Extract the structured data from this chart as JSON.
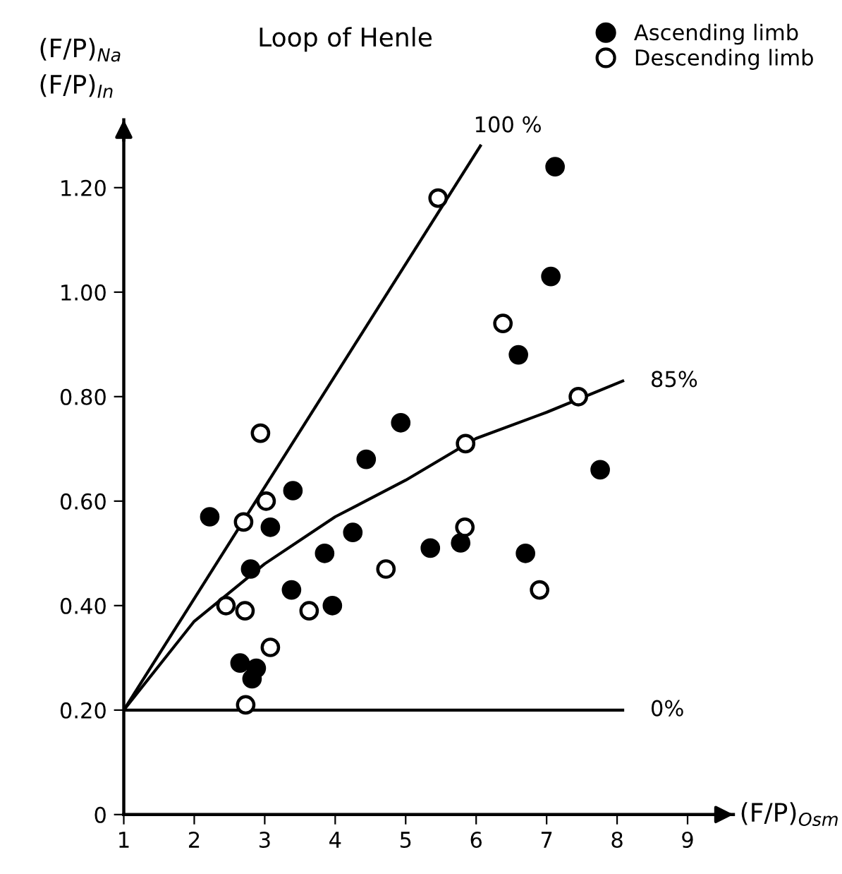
{
  "chart_data": {
    "type": "scatter",
    "title": "Loop of Henle",
    "xlabel": "(F/P)$_{Osm}$",
    "ylabel": "(F/P)$_{Na}$\n(F/P)$_{In}$",
    "xlim": [
      1,
      9.65
    ],
    "xticks": [
      1,
      2,
      3,
      4,
      5,
      6,
      7,
      8,
      9
    ],
    "ylim": [
      0,
      1.33
    ],
    "yticks": [
      0,
      {
        "value": 0.2,
        "label": "0.20"
      },
      {
        "value": 0.4,
        "label": "0.40"
      },
      {
        "value": 0.6,
        "label": "0.60"
      },
      {
        "value": 0.8,
        "label": "0.80"
      },
      {
        "value": 1.0,
        "label": "1.00"
      },
      {
        "value": 1.2,
        "label": "1.20"
      }
    ],
    "grid": false,
    "legend": "top right",
    "series": [
      {
        "name": "Ascending limb",
        "marker": "circle",
        "color": "#000000",
        "x": [
          2.22,
          3.4,
          3.08,
          2.8,
          3.38,
          3.85,
          4.25,
          3.96,
          4.44,
          4.93,
          2.65,
          2.88,
          2.82,
          7.12,
          7.06,
          6.6,
          7.76,
          5.35,
          5.78,
          6.7
        ],
        "values": [
          0.57,
          0.62,
          0.55,
          0.47,
          0.43,
          0.5,
          0.54,
          0.4,
          0.68,
          0.75,
          0.29,
          0.28,
          0.26,
          1.24,
          1.03,
          0.88,
          0.66,
          0.51,
          0.52,
          0.5
        ]
      },
      {
        "name": "Descending limb",
        "marker": "circle",
        "color": "#ffffff",
        "x": [
          2.94,
          3.02,
          2.7,
          2.45,
          2.72,
          3.63,
          3.08,
          2.73,
          4.72,
          5.46,
          6.38,
          7.45,
          5.85,
          5.84,
          6.9
        ],
        "values": [
          0.73,
          0.6,
          0.56,
          0.4,
          0.39,
          0.39,
          0.32,
          0.21,
          0.47,
          1.18,
          0.94,
          0.8,
          0.71,
          0.55,
          0.43
        ]
      },
      {
        "name": "100 %",
        "type": "line",
        "color": "#000000",
        "x": [
          1,
          6.06
        ],
        "values": [
          0.2,
          1.28
        ]
      },
      {
        "name": "85%",
        "type": "line",
        "color": "#000000",
        "x": [
          1,
          2,
          3,
          4,
          5,
          6,
          7,
          8.08
        ],
        "values": [
          0.2,
          0.37,
          0.48,
          0.57,
          0.64,
          0.72,
          0.77,
          0.83
        ]
      },
      {
        "name": "0%",
        "type": "line",
        "color": "#000000",
        "x": [
          1,
          8.08
        ],
        "values": [
          0.2,
          0.2
        ]
      }
    ]
  }
}
